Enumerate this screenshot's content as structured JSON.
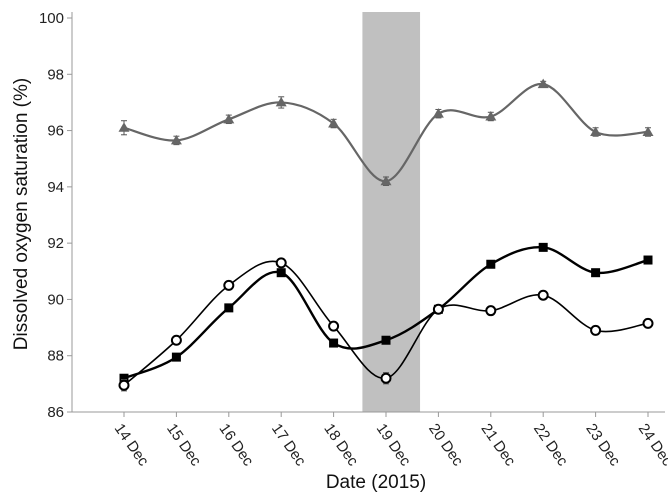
{
  "chart_data": {
    "type": "line",
    "xlabel": "Date (2015)",
    "ylabel": "Dissolved oxygen saturation (%)",
    "categories": [
      "14 Dec",
      "15 Dec",
      "16 Dec",
      "17 Dec",
      "18 Dec",
      "19 Dec",
      "20 Dec",
      "21 Dec",
      "22 Dec",
      "23 Dec",
      "24 Dec"
    ],
    "ylim": [
      86,
      100
    ],
    "yticks": [
      86,
      88,
      90,
      92,
      94,
      96,
      98,
      100
    ],
    "grid": false,
    "legend": "none",
    "shaded_region": {
      "from_category": "18 Dec",
      "to_category": "20 Dec",
      "x_start": 4.55,
      "x_end": 5.65,
      "color": "#c0c0c0"
    },
    "series": [
      {
        "marker": "triangle",
        "color": "#666666",
        "values": [
          96.1,
          95.65,
          96.4,
          97.0,
          96.25,
          94.2,
          96.6,
          96.5,
          97.65,
          95.95,
          95.95
        ],
        "errors": [
          0.25,
          0.15,
          0.15,
          0.2,
          0.15,
          0.15,
          0.15,
          0.15,
          0.1,
          0.15,
          0.15
        ]
      },
      {
        "marker": "square",
        "color": "#000000",
        "values": [
          87.2,
          87.95,
          89.7,
          90.95,
          88.45,
          88.55,
          89.65,
          91.25,
          91.85,
          90.95,
          91.4
        ],
        "errors": [
          0,
          0,
          0,
          0,
          0,
          0,
          0,
          0,
          0,
          0,
          0
        ]
      },
      {
        "marker": "open-circle",
        "color": "#000000",
        "values": [
          86.95,
          88.55,
          90.5,
          91.3,
          89.05,
          87.2,
          89.65,
          89.6,
          90.15,
          88.9,
          89.15
        ],
        "errors": [
          0.2,
          0.1,
          0.1,
          0.1,
          0.1,
          0.2,
          0.15,
          0.1,
          0.1,
          0.15,
          0.15
        ]
      }
    ]
  }
}
